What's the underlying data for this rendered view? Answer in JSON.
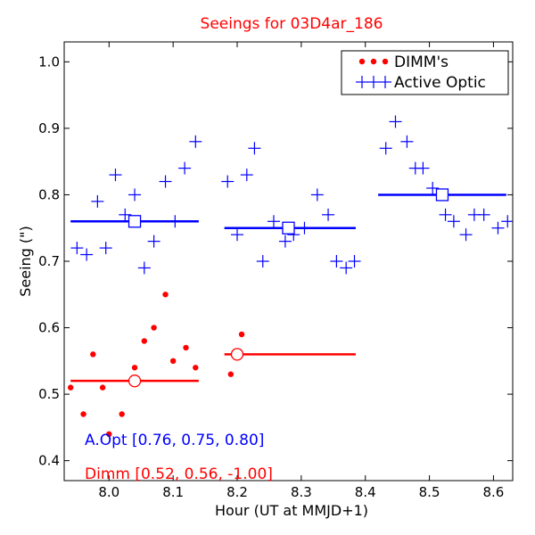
{
  "chart_data": {
    "type": "scatter",
    "title": "Seeings for 03D4ar_186",
    "xlabel": "Hour (UT at MMJD+1)",
    "ylabel": "Seeing (\")",
    "xlim": [
      7.93,
      8.63
    ],
    "ylim": [
      0.37,
      1.03
    ],
    "xticks": [
      8.0,
      8.1,
      8.2,
      8.3,
      8.4,
      8.5,
      8.6
    ],
    "xtick_labels": [
      "8.0",
      "8.1",
      "8.2",
      "8.3",
      "8.4",
      "8.5",
      "8.6"
    ],
    "yticks": [
      0.4,
      0.5,
      0.6,
      0.7,
      0.8,
      0.9,
      1.0
    ],
    "ytick_labels": [
      "0.4",
      "0.5",
      "0.6",
      "0.7",
      "0.8",
      "0.9",
      "1.0"
    ],
    "legend": {
      "position": "top-right",
      "entries": [
        {
          "label": "DIMM's",
          "marker": "dots",
          "color": "#ff0000"
        },
        {
          "label": "Active Optic",
          "marker": "plus",
          "color": "#0000ff"
        }
      ]
    },
    "series": [
      {
        "name": "DIMM's",
        "marker": "dot",
        "color": "#ff0000",
        "x": [
          7.94,
          7.96,
          7.975,
          7.99,
          8.0,
          8.02,
          8.04,
          8.055,
          8.07,
          8.088,
          8.1,
          8.12,
          8.135,
          8.19,
          8.207
        ],
        "y": [
          0.51,
          0.47,
          0.56,
          0.51,
          0.44,
          0.47,
          0.54,
          0.58,
          0.6,
          0.65,
          0.55,
          0.57,
          0.54,
          0.53,
          0.59
        ]
      },
      {
        "name": "Active Optic",
        "marker": "plus",
        "color": "#0000ff",
        "x": [
          7.95,
          7.965,
          7.982,
          7.995,
          8.01,
          8.025,
          8.04,
          8.055,
          8.07,
          8.088,
          8.103,
          8.118,
          8.135,
          8.185,
          8.2,
          8.215,
          8.227,
          8.24,
          8.257,
          8.275,
          8.288,
          8.305,
          8.325,
          8.342,
          8.355,
          8.37,
          8.383,
          8.432,
          8.447,
          8.465,
          8.478,
          8.49,
          8.505,
          8.525,
          8.538,
          8.557,
          8.57,
          8.585,
          8.607,
          8.622
        ],
        "y": [
          0.72,
          0.71,
          0.79,
          0.72,
          0.83,
          0.77,
          0.8,
          0.69,
          0.73,
          0.82,
          0.76,
          0.84,
          0.88,
          0.82,
          0.74,
          0.83,
          0.87,
          0.7,
          0.76,
          0.73,
          0.74,
          0.75,
          0.8,
          0.77,
          0.7,
          0.69,
          0.7,
          0.87,
          0.91,
          0.88,
          0.84,
          0.84,
          0.81,
          0.77,
          0.76,
          0.74,
          0.77,
          0.77,
          0.75,
          0.76
        ]
      }
    ],
    "means": [
      {
        "name": "Active Optic mean",
        "color": "#0000ff",
        "marker": "square",
        "segments": [
          {
            "x_start": 7.94,
            "x_end": 8.14,
            "x_marker": 8.04,
            "y": 0.76
          },
          {
            "x_start": 8.18,
            "x_end": 8.385,
            "x_marker": 8.28,
            "y": 0.75
          },
          {
            "x_start": 8.42,
            "x_end": 8.62,
            "x_marker": 8.52,
            "y": 0.8
          }
        ]
      },
      {
        "name": "DIMM mean",
        "color": "#ff0000",
        "marker": "circle",
        "segments": [
          {
            "x_start": 7.94,
            "x_end": 8.14,
            "x_marker": 8.04,
            "y": 0.52
          },
          {
            "x_start": 8.18,
            "x_end": 8.385,
            "x_marker": 8.2,
            "y": 0.56
          }
        ]
      }
    ],
    "annotations": [
      {
        "text": "A.Opt [0.76, 0.75, 0.80]",
        "color": "#0000ff"
      },
      {
        "text": "Dimm [0.52, 0.56, -1.00]",
        "color": "#ff0000"
      }
    ]
  }
}
